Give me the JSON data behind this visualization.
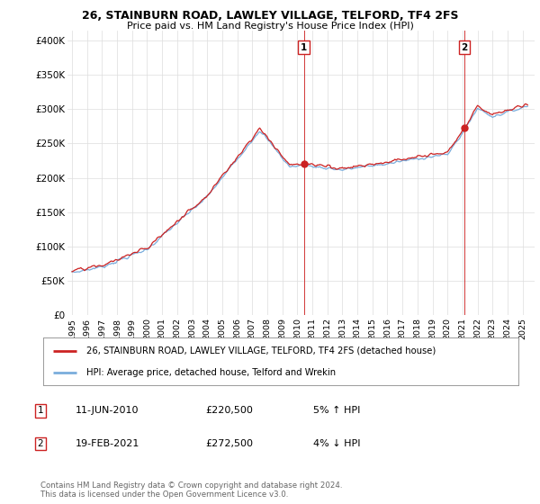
{
  "title": "26, STAINBURN ROAD, LAWLEY VILLAGE, TELFORD, TF4 2FS",
  "subtitle": "Price paid vs. HM Land Registry's House Price Index (HPI)",
  "ylabel_ticks": [
    "£0",
    "£50K",
    "£100K",
    "£150K",
    "£200K",
    "£250K",
    "£300K",
    "£350K",
    "£400K"
  ],
  "ytick_values": [
    0,
    50000,
    100000,
    150000,
    200000,
    250000,
    300000,
    350000,
    400000
  ],
  "ylim": [
    0,
    415000
  ],
  "xlim_start": 1994.7,
  "xlim_end": 2025.8,
  "hpi_color": "#7aaddc",
  "price_color": "#cc2222",
  "marker1_date": 2010.44,
  "marker1_price": 220500,
  "marker2_date": 2021.12,
  "marker2_price": 272500,
  "legend_line1": "26, STAINBURN ROAD, LAWLEY VILLAGE, TELFORD, TF4 2FS (detached house)",
  "legend_line2": "HPI: Average price, detached house, Telford and Wrekin",
  "annotation1_date": "11-JUN-2010",
  "annotation1_price": "£220,500",
  "annotation1_pct": "5% ↑ HPI",
  "annotation2_date": "19-FEB-2021",
  "annotation2_price": "£272,500",
  "annotation2_pct": "4% ↓ HPI",
  "footnote": "Contains HM Land Registry data © Crown copyright and database right 2024.\nThis data is licensed under the Open Government Licence v3.0.",
  "background_color": "#ffffff",
  "grid_color": "#dddddd"
}
